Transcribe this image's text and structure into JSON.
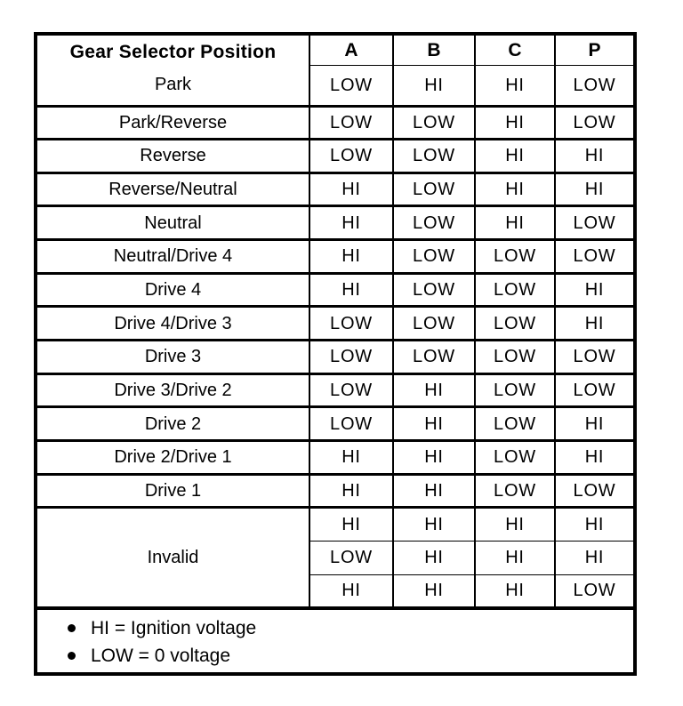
{
  "table": {
    "header": {
      "position_label": "Gear Selector Position",
      "columns": [
        "A",
        "B",
        "C",
        "P"
      ]
    },
    "rows": [
      {
        "position": "Park",
        "values": [
          "LOW",
          "HI",
          "HI",
          "LOW"
        ]
      },
      {
        "position": "Park/Reverse",
        "values": [
          "LOW",
          "LOW",
          "HI",
          "LOW"
        ]
      },
      {
        "position": "Reverse",
        "values": [
          "LOW",
          "LOW",
          "HI",
          "HI"
        ]
      },
      {
        "position": "Reverse/Neutral",
        "values": [
          "HI",
          "LOW",
          "HI",
          "HI"
        ]
      },
      {
        "position": "Neutral",
        "values": [
          "HI",
          "LOW",
          "HI",
          "LOW"
        ]
      },
      {
        "position": "Neutral/Drive 4",
        "values": [
          "HI",
          "LOW",
          "LOW",
          "LOW"
        ]
      },
      {
        "position": "Drive 4",
        "values": [
          "HI",
          "LOW",
          "LOW",
          "HI"
        ]
      },
      {
        "position": "Drive 4/Drive 3",
        "values": [
          "LOW",
          "LOW",
          "LOW",
          "HI"
        ]
      },
      {
        "position": "Drive 3",
        "values": [
          "LOW",
          "LOW",
          "LOW",
          "LOW"
        ]
      },
      {
        "position": "Drive 3/Drive 2",
        "values": [
          "LOW",
          "HI",
          "LOW",
          "LOW"
        ]
      },
      {
        "position": "Drive 2",
        "values": [
          "LOW",
          "HI",
          "LOW",
          "HI"
        ]
      },
      {
        "position": "Drive 2/Drive 1",
        "values": [
          "HI",
          "HI",
          "LOW",
          "HI"
        ]
      },
      {
        "position": "Drive 1",
        "values": [
          "HI",
          "HI",
          "LOW",
          "LOW"
        ]
      }
    ],
    "invalid": {
      "position": "Invalid",
      "rows": [
        [
          "HI",
          "HI",
          "HI",
          "HI"
        ],
        [
          "LOW",
          "HI",
          "HI",
          "HI"
        ],
        [
          "HI",
          "HI",
          "HI",
          "LOW"
        ]
      ]
    },
    "notes": [
      "HI = Ignition voltage",
      "LOW = 0 voltage"
    ],
    "colors": {
      "border": "#000000",
      "text": "#000000",
      "background": "#ffffff"
    }
  }
}
